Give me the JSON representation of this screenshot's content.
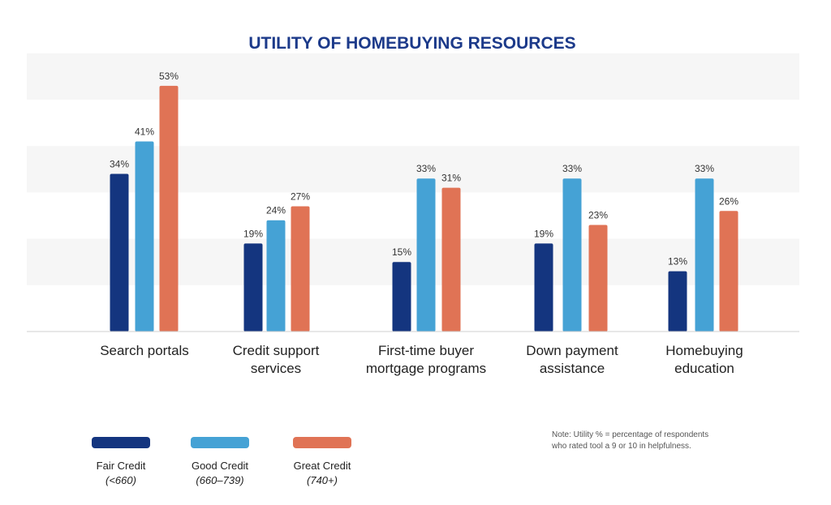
{
  "chart_data": {
    "type": "bar",
    "title": "UTILITY OF HOMEBUYING RESOURCES",
    "categories": [
      [
        "Search portals"
      ],
      [
        "Credit support",
        "services"
      ],
      [
        "First-time buyer",
        "mortgage programs"
      ],
      [
        "Down payment",
        "assistance"
      ],
      [
        "Homebuying",
        "education"
      ]
    ],
    "series": [
      {
        "name": "Fair Credit",
        "sublabel": "(<660)",
        "color": "#14357f",
        "values": [
          34,
          19,
          15,
          19,
          13
        ]
      },
      {
        "name": "Good Credit",
        "sublabel": "(660–739)",
        "color": "#45a2d5",
        "values": [
          41,
          24,
          33,
          33,
          33
        ]
      },
      {
        "name": "Great Credit",
        "sublabel": "(740+)",
        "color": "#e07355",
        "values": [
          53,
          27,
          31,
          23,
          26
        ]
      }
    ],
    "value_suffix": "%",
    "ylim": [
      0,
      60
    ],
    "grid": "alternating bands",
    "legend_position": "bottom-left",
    "note": [
      "Note: Utility % = percentage of respondents",
      "who rated tool a 9 or 10 in helpfulness."
    ],
    "colors": {
      "title": "#1c3a8a",
      "band": "#f6f6f6",
      "axis": "#cfcfcf"
    }
  }
}
